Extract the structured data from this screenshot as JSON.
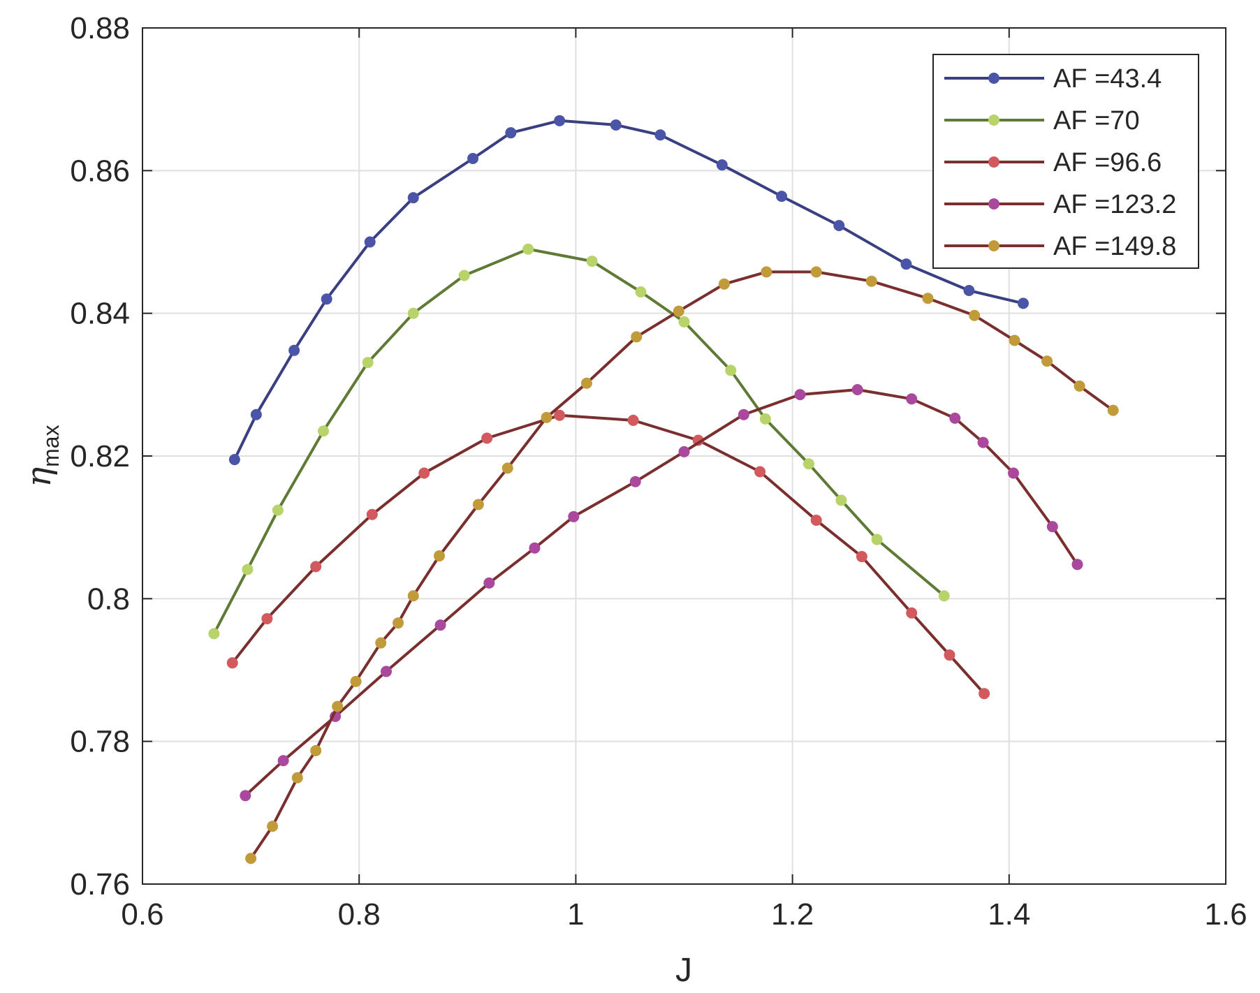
{
  "chart_data": {
    "type": "line",
    "xlabel": "J",
    "ylabel": {
      "main": "η",
      "sub": "max"
    },
    "xlim": [
      0.6,
      1.6
    ],
    "ylim": [
      0.76,
      0.88
    ],
    "xticks": [
      0.6,
      0.8,
      1.0,
      1.2,
      1.4,
      1.6
    ],
    "xtick_labels": [
      "0.6",
      "0.8",
      "1",
      "1.2",
      "1.4",
      "1.6"
    ],
    "yticks": [
      0.76,
      0.78,
      0.8,
      0.82,
      0.84,
      0.86,
      0.88
    ],
    "ytick_labels": [
      "0.76",
      "0.78",
      "0.8",
      "0.82",
      "0.84",
      "0.86",
      "0.88"
    ],
    "grid": true,
    "legend_position": "top-right",
    "series": [
      {
        "name": "AF =43.4",
        "line_color": "#3a3f82",
        "marker_color": "#4b55a8",
        "x": [
          0.685,
          0.705,
          0.74,
          0.77,
          0.81,
          0.85,
          0.905,
          0.94,
          0.985,
          1.037,
          1.078,
          1.135,
          1.19,
          1.243,
          1.305,
          1.363,
          1.413
        ],
        "y": [
          0.8195,
          0.8258,
          0.8348,
          0.842,
          0.85,
          0.8562,
          0.8617,
          0.8653,
          0.867,
          0.8664,
          0.865,
          0.8608,
          0.8564,
          0.8523,
          0.8469,
          0.8432,
          0.8414
        ]
      },
      {
        "name": "AF =70",
        "line_color": "#5e7a34",
        "marker_color": "#b7d36a",
        "x": [
          0.666,
          0.697,
          0.725,
          0.767,
          0.808,
          0.85,
          0.897,
          0.956,
          1.015,
          1.06,
          1.1,
          1.143,
          1.175,
          1.215,
          1.245,
          1.278,
          1.34
        ],
        "y": [
          0.7951,
          0.8041,
          0.8124,
          0.8235,
          0.8331,
          0.84,
          0.8453,
          0.849,
          0.8473,
          0.843,
          0.8388,
          0.832,
          0.8252,
          0.8189,
          0.8138,
          0.8083,
          0.8004
        ]
      },
      {
        "name": "AF =96.6",
        "line_color": "#7a2e2e",
        "marker_color": "#d25a5e",
        "x": [
          0.683,
          0.715,
          0.76,
          0.812,
          0.86,
          0.918,
          0.985,
          1.053,
          1.113,
          1.17,
          1.222,
          1.264,
          1.31,
          1.345,
          1.377
        ],
        "y": [
          0.791,
          0.7972,
          0.8045,
          0.8118,
          0.8176,
          0.8225,
          0.8257,
          0.825,
          0.8222,
          0.8178,
          0.811,
          0.8059,
          0.798,
          0.7921,
          0.7867
        ]
      },
      {
        "name": "AF =123.2",
        "line_color": "#7a2e2e",
        "marker_color": "#a9489d",
        "x": [
          0.695,
          0.73,
          0.778,
          0.825,
          0.875,
          0.92,
          0.962,
          0.998,
          1.055,
          1.1,
          1.155,
          1.207,
          1.26,
          1.31,
          1.35,
          1.376,
          1.404,
          1.44,
          1.463
        ],
        "y": [
          0.7724,
          0.7773,
          0.7835,
          0.7898,
          0.7963,
          0.8022,
          0.8071,
          0.8115,
          0.8164,
          0.8206,
          0.8258,
          0.8286,
          0.8293,
          0.828,
          0.8253,
          0.8219,
          0.8176,
          0.8101,
          0.8048
        ]
      },
      {
        "name": "AF =149.8",
        "line_color": "#7a2e2e",
        "marker_color": "#c19a39",
        "x": [
          0.7,
          0.72,
          0.743,
          0.76,
          0.78,
          0.797,
          0.82,
          0.836,
          0.85,
          0.874,
          0.91,
          0.937,
          0.973,
          1.01,
          1.056,
          1.095,
          1.137,
          1.176,
          1.222,
          1.273,
          1.325,
          1.368,
          1.405,
          1.435,
          1.465,
          1.496
        ],
        "y": [
          0.7636,
          0.7681,
          0.7749,
          0.7787,
          0.7849,
          0.7884,
          0.7938,
          0.7966,
          0.8004,
          0.806,
          0.8132,
          0.8183,
          0.8254,
          0.8302,
          0.8367,
          0.8403,
          0.8441,
          0.8458,
          0.8458,
          0.8445,
          0.8421,
          0.8397,
          0.8362,
          0.8333,
          0.8298,
          0.8264
        ]
      }
    ]
  }
}
